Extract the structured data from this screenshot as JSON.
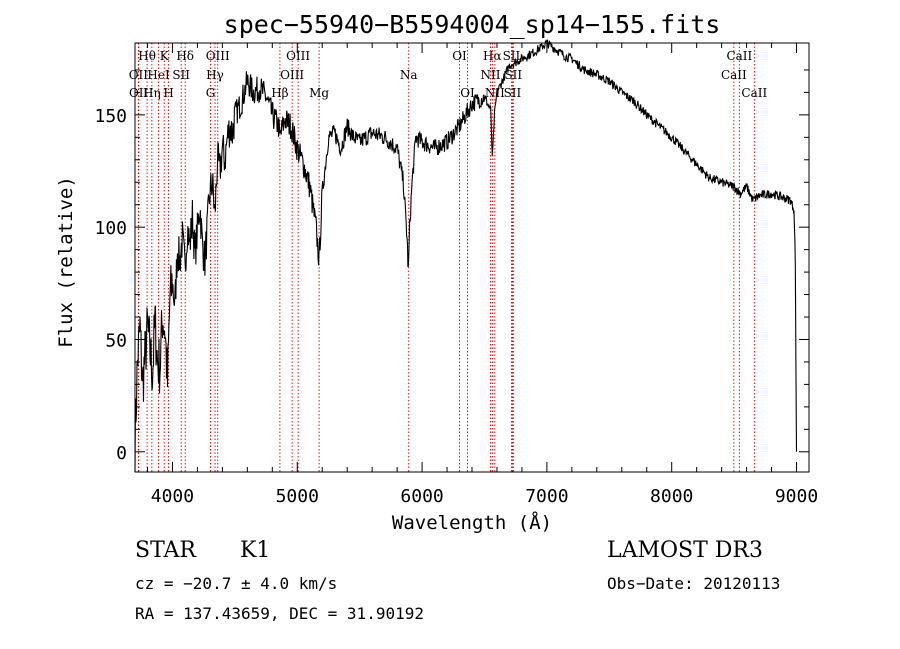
{
  "chart_data": {
    "type": "line",
    "title": "spec−55940−B5594004_sp14−155.fits",
    "xlabel": "Wavelength (Å)",
    "ylabel": "Flux (relative)",
    "xlim": [
      3700,
      9100
    ],
    "ylim": [
      -9,
      182
    ],
    "xticks": [
      4000,
      5000,
      6000,
      7000,
      8000,
      9000
    ],
    "yticks": [
      0,
      50,
      100,
      150
    ],
    "grid": false,
    "series": [
      {
        "x": [
          3700,
          3720,
          3740,
          3760,
          3780,
          3800,
          3820,
          3840,
          3860,
          3880,
          3900,
          3920,
          3940,
          3960,
          3980,
          4000,
          4020,
          4040,
          4060,
          4080,
          4100,
          4120,
          4140,
          4160,
          4180,
          4200,
          4220,
          4240,
          4260,
          4280,
          4300,
          4320,
          4340,
          4360,
          4380,
          4400,
          4420,
          4440,
          4460,
          4480,
          4500,
          4550,
          4600,
          4650,
          4700,
          4750,
          4800,
          4850,
          4860,
          4900,
          4950,
          5000,
          5050,
          5100,
          5150,
          5175,
          5200,
          5250,
          5300,
          5350,
          5400,
          5450,
          5500,
          5600,
          5700,
          5800,
          5850,
          5880,
          5890,
          5900,
          5920,
          5950,
          6000,
          6100,
          6200,
          6300,
          6350,
          6400,
          6500,
          6550,
          6563,
          6580,
          6600,
          6700,
          6800,
          6900,
          6950,
          7000,
          7050,
          7100,
          7150,
          7200,
          7300,
          7400,
          7500,
          7600,
          7700,
          7800,
          7900,
          8000,
          8100,
          8200,
          8300,
          8400,
          8500,
          8550,
          8600,
          8650,
          8700,
          8800,
          8900,
          8950,
          8980,
          8990,
          8995,
          9000
        ],
        "y": [
          5,
          40,
          55,
          30,
          42,
          55,
          45,
          35,
          58,
          40,
          38,
          60,
          55,
          30,
          68,
          75,
          65,
          90,
          85,
          95,
          82,
          100,
          92,
          105,
          88,
          98,
          110,
          92,
          85,
          100,
          115,
          120,
          105,
          130,
          125,
          135,
          130,
          140,
          145,
          142,
          150,
          155,
          165,
          160,
          162,
          158,
          150,
          145,
          140,
          148,
          145,
          135,
          128,
          118,
          100,
          85,
          115,
          140,
          142,
          135,
          145,
          140,
          138,
          142,
          140,
          135,
          120,
          95,
          80,
          100,
          120,
          140,
          138,
          135,
          138,
          145,
          150,
          155,
          158,
          152,
          130,
          150,
          160,
          172,
          175,
          178,
          180,
          182,
          180,
          178,
          176,
          175,
          170,
          168,
          165,
          160,
          156,
          150,
          145,
          140,
          134,
          128,
          122,
          120,
          118,
          115,
          118,
          112,
          114,
          115,
          113,
          112,
          108,
          85,
          40,
          0
        ]
      }
    ],
    "lines": [
      {
        "name": "Hθ",
        "w": 3797,
        "row": 0
      },
      {
        "name": "OII",
        "w": 3727,
        "row": 1
      },
      {
        "name": "OII",
        "w": 3729,
        "row": 2
      },
      {
        "name": "Hη",
        "w": 3835,
        "row": 2
      },
      {
        "name": "HeI",
        "w": 3889,
        "row": 1
      },
      {
        "name": "K",
        "w": 3934,
        "row": 0
      },
      {
        "name": "H",
        "w": 3969,
        "row": 2
      },
      {
        "name": "SII",
        "w": 4070,
        "row": 1
      },
      {
        "name": "Hδ",
        "w": 4102,
        "row": 0
      },
      {
        "name": "OIII",
        "w": 4363,
        "row": 0
      },
      {
        "name": "Hγ",
        "w": 4341,
        "row": 1
      },
      {
        "name": "G",
        "w": 4305,
        "row": 2
      },
      {
        "name": "Hβ",
        "w": 4861,
        "row": 2
      },
      {
        "name": "OIII",
        "w": 4959,
        "row": 1
      },
      {
        "name": "OIII",
        "w": 5007,
        "row": 0
      },
      {
        "name": "Mg",
        "w": 5175,
        "row": 2
      },
      {
        "name": "Na",
        "w": 5893,
        "row": 1
      },
      {
        "name": "OI",
        "w": 6300,
        "row": 0
      },
      {
        "name": "OI",
        "w": 6364,
        "row": 2
      },
      {
        "name": "Hα",
        "w": 6563,
        "row": 0
      },
      {
        "name": "NII",
        "w": 6548,
        "row": 1
      },
      {
        "name": "NII",
        "w": 6583,
        "row": 2
      },
      {
        "name": "SII",
        "w": 6716,
        "row": 0
      },
      {
        "name": "SII",
        "w": 6731,
        "row": 1
      },
      {
        "name": "SII",
        "w": 6724,
        "row": 2
      },
      {
        "name": "CaII",
        "w": 8542,
        "row": 0
      },
      {
        "name": "CaII",
        "w": 8498,
        "row": 1
      },
      {
        "name": "CaII",
        "w": 8662,
        "row": 2
      }
    ]
  },
  "info": {
    "class": "STAR",
    "subclass": "K1",
    "survey": "LAMOST DR3",
    "cz": "cz = −20.7 ± 4.0 km/s",
    "obs_date": "Obs−Date: 20120113",
    "radec": "RA = 137.43659, DEC =  31.90192"
  }
}
